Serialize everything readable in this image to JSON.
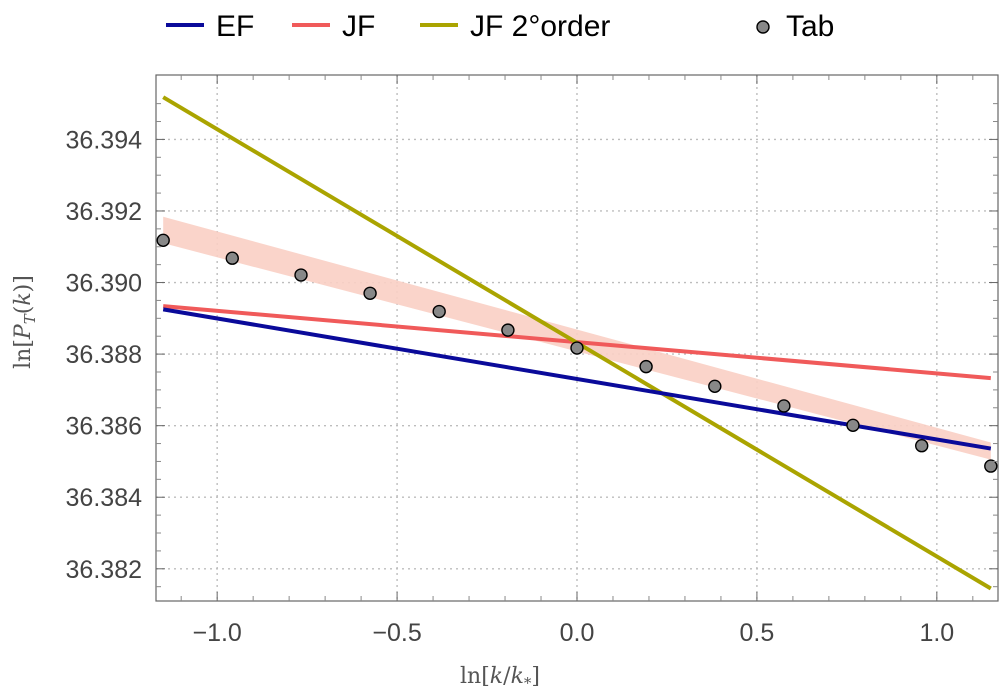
{
  "chart_data": {
    "type": "line",
    "xlabel_parts": [
      "ln[",
      "k",
      "/",
      "k",
      "*",
      "]"
    ],
    "ylabel_parts": [
      "ln[",
      "P",
      "T",
      "(",
      "k",
      ")]"
    ],
    "xlim": [
      -1.17,
      1.17
    ],
    "ylim": [
      36.3811,
      36.3958
    ],
    "x_ticks": [
      -1.0,
      -0.5,
      0.0,
      0.5,
      1.0
    ],
    "x_tick_labels": [
      "−1.0",
      "−0.5",
      "0.0",
      "0.5",
      "1.0"
    ],
    "y_ticks": [
      36.382,
      36.384,
      36.386,
      36.388,
      36.39,
      36.392,
      36.394
    ],
    "y_tick_labels": [
      "36.382",
      "36.384",
      "36.386",
      "36.388",
      "36.390",
      "36.392",
      "36.394"
    ],
    "grid": true,
    "legend_position": "top",
    "series": [
      {
        "name": "EF",
        "kind": "line",
        "color": "#0a0a9a",
        "x": [
          -1.15,
          1.15
        ],
        "y": [
          36.38925,
          36.38536
        ]
      },
      {
        "name": "JF",
        "kind": "line",
        "color": "#f05a5a",
        "x": [
          -1.15,
          1.15
        ],
        "y": [
          36.38934,
          36.38733
        ]
      },
      {
        "name": "JF 2°order",
        "kind": "line",
        "color": "#aaa400",
        "x": [
          -1.15,
          1.15
        ],
        "y": [
          36.39518,
          36.38145
        ]
      },
      {
        "name": "Tab",
        "kind": "scatter",
        "color": "#888888",
        "x": [
          -1.15,
          -0.958,
          -0.767,
          -0.575,
          -0.383,
          -0.192,
          0.0,
          0.192,
          0.383,
          0.575,
          0.767,
          0.958,
          1.15
        ],
        "y": [
          36.39118,
          36.39068,
          36.39021,
          36.3897,
          36.38919,
          36.38867,
          36.38817,
          36.38765,
          36.3871,
          36.38655,
          36.38601,
          36.38544,
          36.38487
        ]
      }
    ],
    "band": {
      "color": "#f9cfc4",
      "x": [
        -1.15,
        1.15
      ],
      "upper": [
        36.39184,
        36.38553
      ],
      "lower": [
        36.3911,
        36.38505
      ]
    }
  }
}
